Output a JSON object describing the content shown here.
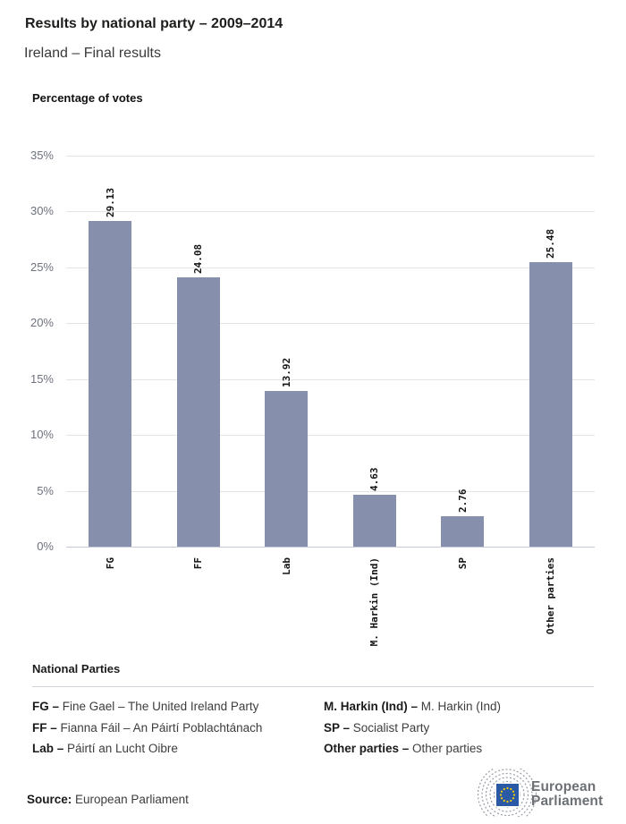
{
  "header": {
    "title": "Results by national party – 2009–2014",
    "subtitle": "Ireland – Final results"
  },
  "chart_data": {
    "type": "bar",
    "title": "Percentage of votes",
    "categories": [
      "FG",
      "FF",
      "Lab",
      "M. Harkin (Ind)",
      "SP",
      "Other parties"
    ],
    "values": [
      29.13,
      24.08,
      13.92,
      4.63,
      2.76,
      25.48
    ],
    "value_labels": [
      "29.13",
      "24.08",
      "13.92",
      "4.63",
      "2.76",
      "25.48"
    ],
    "xlabel": "",
    "ylabel": "",
    "ylim": [
      0,
      35
    ],
    "ytick_step": 5,
    "ytick_suffix": "%",
    "grid": true,
    "legend_position": "none",
    "bar_color": "#868fac",
    "grid_color": "#e4e4e4",
    "axis_color": "#c4cad6",
    "tick_color": "#6e727e"
  },
  "legend": {
    "heading": "National Parties",
    "columns": [
      [
        {
          "abbr": "FG –",
          "name": "Fine Gael – The United Ireland Party"
        },
        {
          "abbr": "FF –",
          "name": "Fianna Fáil – An Páirtí Poblachtánach"
        },
        {
          "abbr": "Lab –",
          "name": "Páirtí an Lucht Oibre"
        }
      ],
      [
        {
          "abbr": "M. Harkin (Ind) –",
          "name": "M. Harkin (Ind)"
        },
        {
          "abbr": "SP –",
          "name": "Socialist Party"
        },
        {
          "abbr": "Other parties –",
          "name": "Other parties"
        }
      ]
    ]
  },
  "footer": {
    "source_label": "Source:",
    "source_text": "European Parliament",
    "logo_text_line1": "European",
    "logo_text_line2": "Parliament",
    "logo_colors": {
      "flag_blue": "#2a5aa5",
      "star_yellow": "#ffcc00",
      "arc_gray": "#999ea6",
      "text_gray": "#6d7176"
    }
  }
}
